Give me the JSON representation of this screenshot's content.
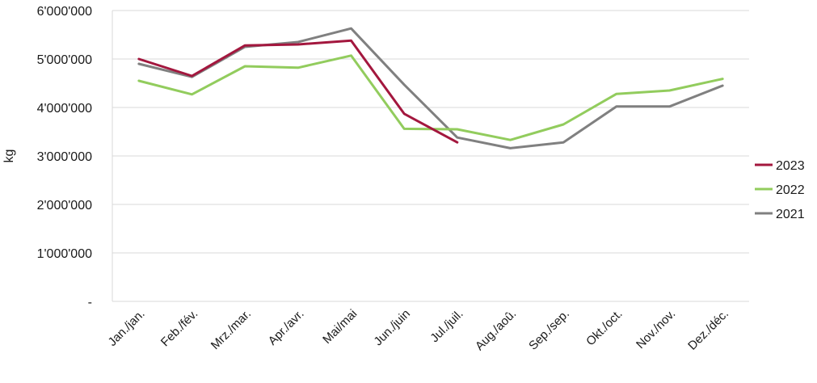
{
  "chart_data": {
    "type": "line",
    "title": "",
    "xlabel": "",
    "ylabel": "kg",
    "ylim": [
      0,
      6000000
    ],
    "grid": true,
    "legend_position": "right",
    "categories": [
      "Jan./jan.",
      "Feb./fév.",
      "Mrz./mar.",
      "Apr./avr.",
      "Mai/mai",
      "Jun./juin",
      "Jul./juil.",
      "Aug./aoû.",
      "Sep./sep.",
      "Okt./oct.",
      "Nov./nov.",
      "Dez./déc."
    ],
    "y_ticks": [
      {
        "value": 0,
        "label": "-"
      },
      {
        "value": 1000000,
        "label": "1'000'000"
      },
      {
        "value": 2000000,
        "label": "2'000'000"
      },
      {
        "value": 3000000,
        "label": "3'000'000"
      },
      {
        "value": 4000000,
        "label": "4'000'000"
      },
      {
        "value": 5000000,
        "label": "5'000'000"
      },
      {
        "value": 6000000,
        "label": "6'000'000"
      }
    ],
    "series": [
      {
        "name": "2023",
        "color": "#a3173e",
        "values": [
          5000000,
          4650000,
          5280000,
          5300000,
          5380000,
          3870000,
          3280000,
          null,
          null,
          null,
          null,
          null
        ]
      },
      {
        "name": "2022",
        "color": "#92cc5d",
        "values": [
          4550000,
          4270000,
          4850000,
          4820000,
          5070000,
          3560000,
          3550000,
          3330000,
          3650000,
          4280000,
          4350000,
          4590000
        ]
      },
      {
        "name": "2021",
        "color": "#808080",
        "values": [
          4900000,
          4630000,
          5250000,
          5350000,
          5630000,
          4470000,
          3380000,
          3160000,
          3280000,
          4020000,
          4020000,
          4450000
        ]
      }
    ]
  }
}
